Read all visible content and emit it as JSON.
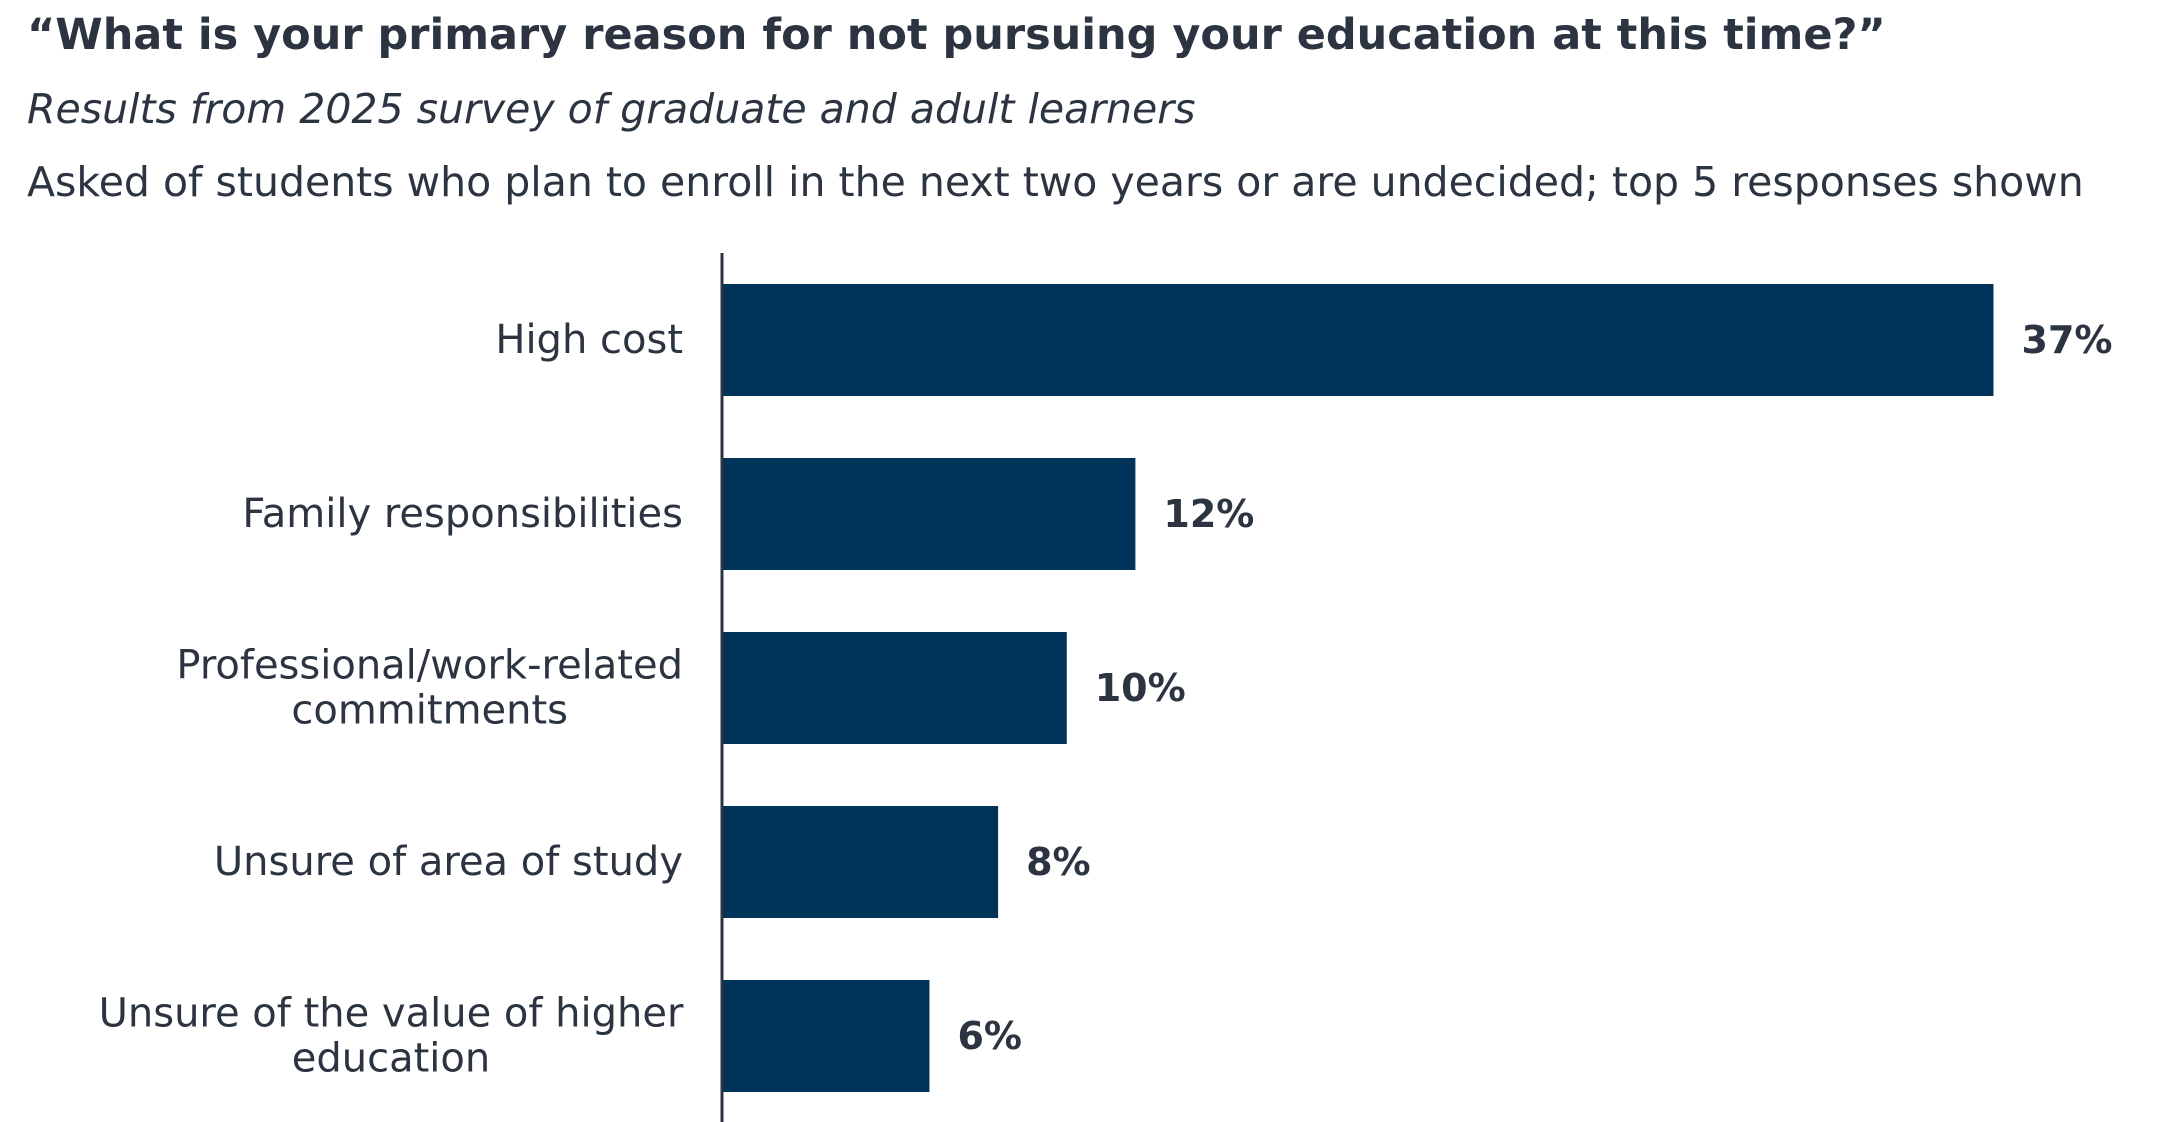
{
  "chart_data": {
    "type": "bar",
    "orientation": "horizontal",
    "title": "“What is your primary reason for not pursuing your education at this time?”",
    "subtitle": "Results from 2025 survey of graduate and adult learners",
    "note": "Asked of students who plan to enroll in the next two years or are undecided; top 5 responses shown",
    "categories": [
      [
        "High cost"
      ],
      [
        "Family responsibilities"
      ],
      [
        "Professional/work-related",
        "commitments"
      ],
      [
        "Unsure of area of study"
      ],
      [
        "Unsure of the value of higher",
        "education"
      ]
    ],
    "values": [
      37,
      12,
      10,
      8,
      6
    ],
    "value_labels": [
      "37%",
      "12%",
      "10%",
      "8%",
      "6%"
    ],
    "xlim": [
      0,
      40
    ],
    "grid": false,
    "bar_color": "#003359",
    "text_color": "#2b3440"
  }
}
